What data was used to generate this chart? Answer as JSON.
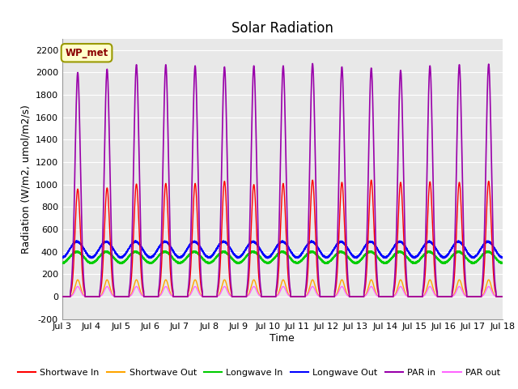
{
  "title": "Solar Radiation",
  "ylabel": "Radiation (W/m2, umol/m2/s)",
  "xlabel": "Time",
  "annotation": "WP_met",
  "ylim": [
    -200,
    2300
  ],
  "yticks": [
    -200,
    0,
    200,
    400,
    600,
    800,
    1000,
    1200,
    1400,
    1600,
    1800,
    2000,
    2200
  ],
  "xlim": [
    3,
    18
  ],
  "xtick_labels": [
    "Jul 3",
    "Jul 4",
    "Jul 5",
    "Jul 6",
    "Jul 7",
    "Jul 8",
    "Jul 9",
    "Jul 10",
    "Jul 11",
    "Jul 12",
    "Jul 13",
    "Jul 14",
    "Jul 15",
    "Jul 16",
    "Jul 17",
    "Jul 18"
  ],
  "xtick_positions": [
    3,
    4,
    5,
    6,
    7,
    8,
    9,
    10,
    11,
    12,
    13,
    14,
    15,
    16,
    17,
    18
  ],
  "series": {
    "shortwave_in": {
      "color": "#FF0000",
      "label": "Shortwave In"
    },
    "shortwave_out": {
      "color": "#FFA500",
      "label": "Shortwave Out"
    },
    "longwave_in": {
      "color": "#00CC00",
      "label": "Longwave In"
    },
    "longwave_out": {
      "color": "#0000FF",
      "label": "Longwave Out"
    },
    "par_in": {
      "color": "#9900AA",
      "label": "PAR in"
    },
    "par_out": {
      "color": "#FF66FF",
      "label": "PAR out"
    }
  },
  "background_color": "#E8E8E8",
  "figure_background": "#FFFFFF",
  "grid_color": "#FFFFFF",
  "title_fontsize": 12,
  "axis_fontsize": 9,
  "tick_fontsize": 8,
  "legend_fontsize": 8
}
